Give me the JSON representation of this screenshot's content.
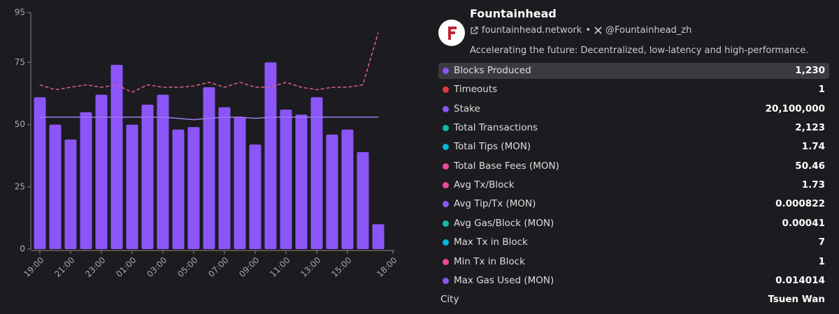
{
  "chart_data": {
    "type": "bar",
    "categories": [
      "19:00",
      null,
      "21:00",
      null,
      "23:00",
      null,
      "01:00",
      null,
      "03:00",
      null,
      "05:00",
      null,
      "07:00",
      null,
      "09:00",
      null,
      "11:00",
      null,
      "13:00",
      null,
      "15:00",
      null,
      null,
      "18:00"
    ],
    "series": [
      {
        "type": "bar",
        "color": "#8b55f7",
        "values": [
          61,
          50,
          44,
          55,
          62,
          74,
          50,
          58,
          62,
          48,
          49,
          65,
          57,
          53,
          42,
          75,
          56,
          54,
          61,
          46,
          48,
          39,
          10,
          null
        ]
      },
      {
        "type": "line",
        "color": "#9a7cf4",
        "dashed": false,
        "values": [
          53,
          53,
          53,
          53,
          53,
          53,
          53,
          53,
          53,
          52.5,
          52,
          52.5,
          53,
          53,
          52.5,
          53,
          53,
          53,
          53,
          53,
          53,
          53,
          53,
          null
        ]
      },
      {
        "type": "line",
        "color": "#e0608f",
        "dashed": true,
        "values": [
          66,
          64,
          65,
          66,
          65,
          66,
          63,
          66,
          65,
          65,
          65.5,
          67,
          65,
          67,
          65,
          65,
          67,
          65,
          64,
          65,
          65,
          66,
          87,
          null
        ]
      }
    ],
    "ylim": [
      0,
      95
    ],
    "yticks": [
      0,
      25,
      50,
      75,
      95
    ],
    "grid": false
  },
  "profile": {
    "name": "Fountainhead",
    "website": "fountainhead.network",
    "separator": "•",
    "x_handle": "@Fountainhead_zh",
    "description": "Accelerating the future: Decentralized, low-latency and high-performance."
  },
  "stats": [
    {
      "label": "Blocks Produced",
      "value": "1,230",
      "color": "#8b55f7",
      "highlighted": true
    },
    {
      "label": "Timeouts",
      "value": "1",
      "color": "#e5383b"
    },
    {
      "label": "Stake",
      "value": "20,100,000",
      "color": "#8b55f7"
    },
    {
      "label": "Total Transactions",
      "value": "2,123",
      "color": "#14b8a6"
    },
    {
      "label": "Total Tips (MON)",
      "value": "1.74",
      "color": "#06b6d4"
    },
    {
      "label": "Total Base Fees (MON)",
      "value": "50.46",
      "color": "#ec4899"
    },
    {
      "label": "Avg Tx/Block",
      "value": "1.73",
      "color": "#ec4899"
    },
    {
      "label": "Avg Tip/Tx (MON)",
      "value": "0.000822",
      "color": "#8b55f7"
    },
    {
      "label": "Avg Gas/Block (MON)",
      "value": "0.00041",
      "color": "#14b8a6"
    },
    {
      "label": "Max Tx in Block",
      "value": "7",
      "color": "#06b6d4"
    },
    {
      "label": "Min Tx in Block",
      "value": "1",
      "color": "#ec4899"
    },
    {
      "label": "Max Gas Used (MON)",
      "value": "0.014014",
      "color": "#8b55f7"
    },
    {
      "label": "City",
      "value": "Tsuen Wan",
      "color": null
    }
  ]
}
